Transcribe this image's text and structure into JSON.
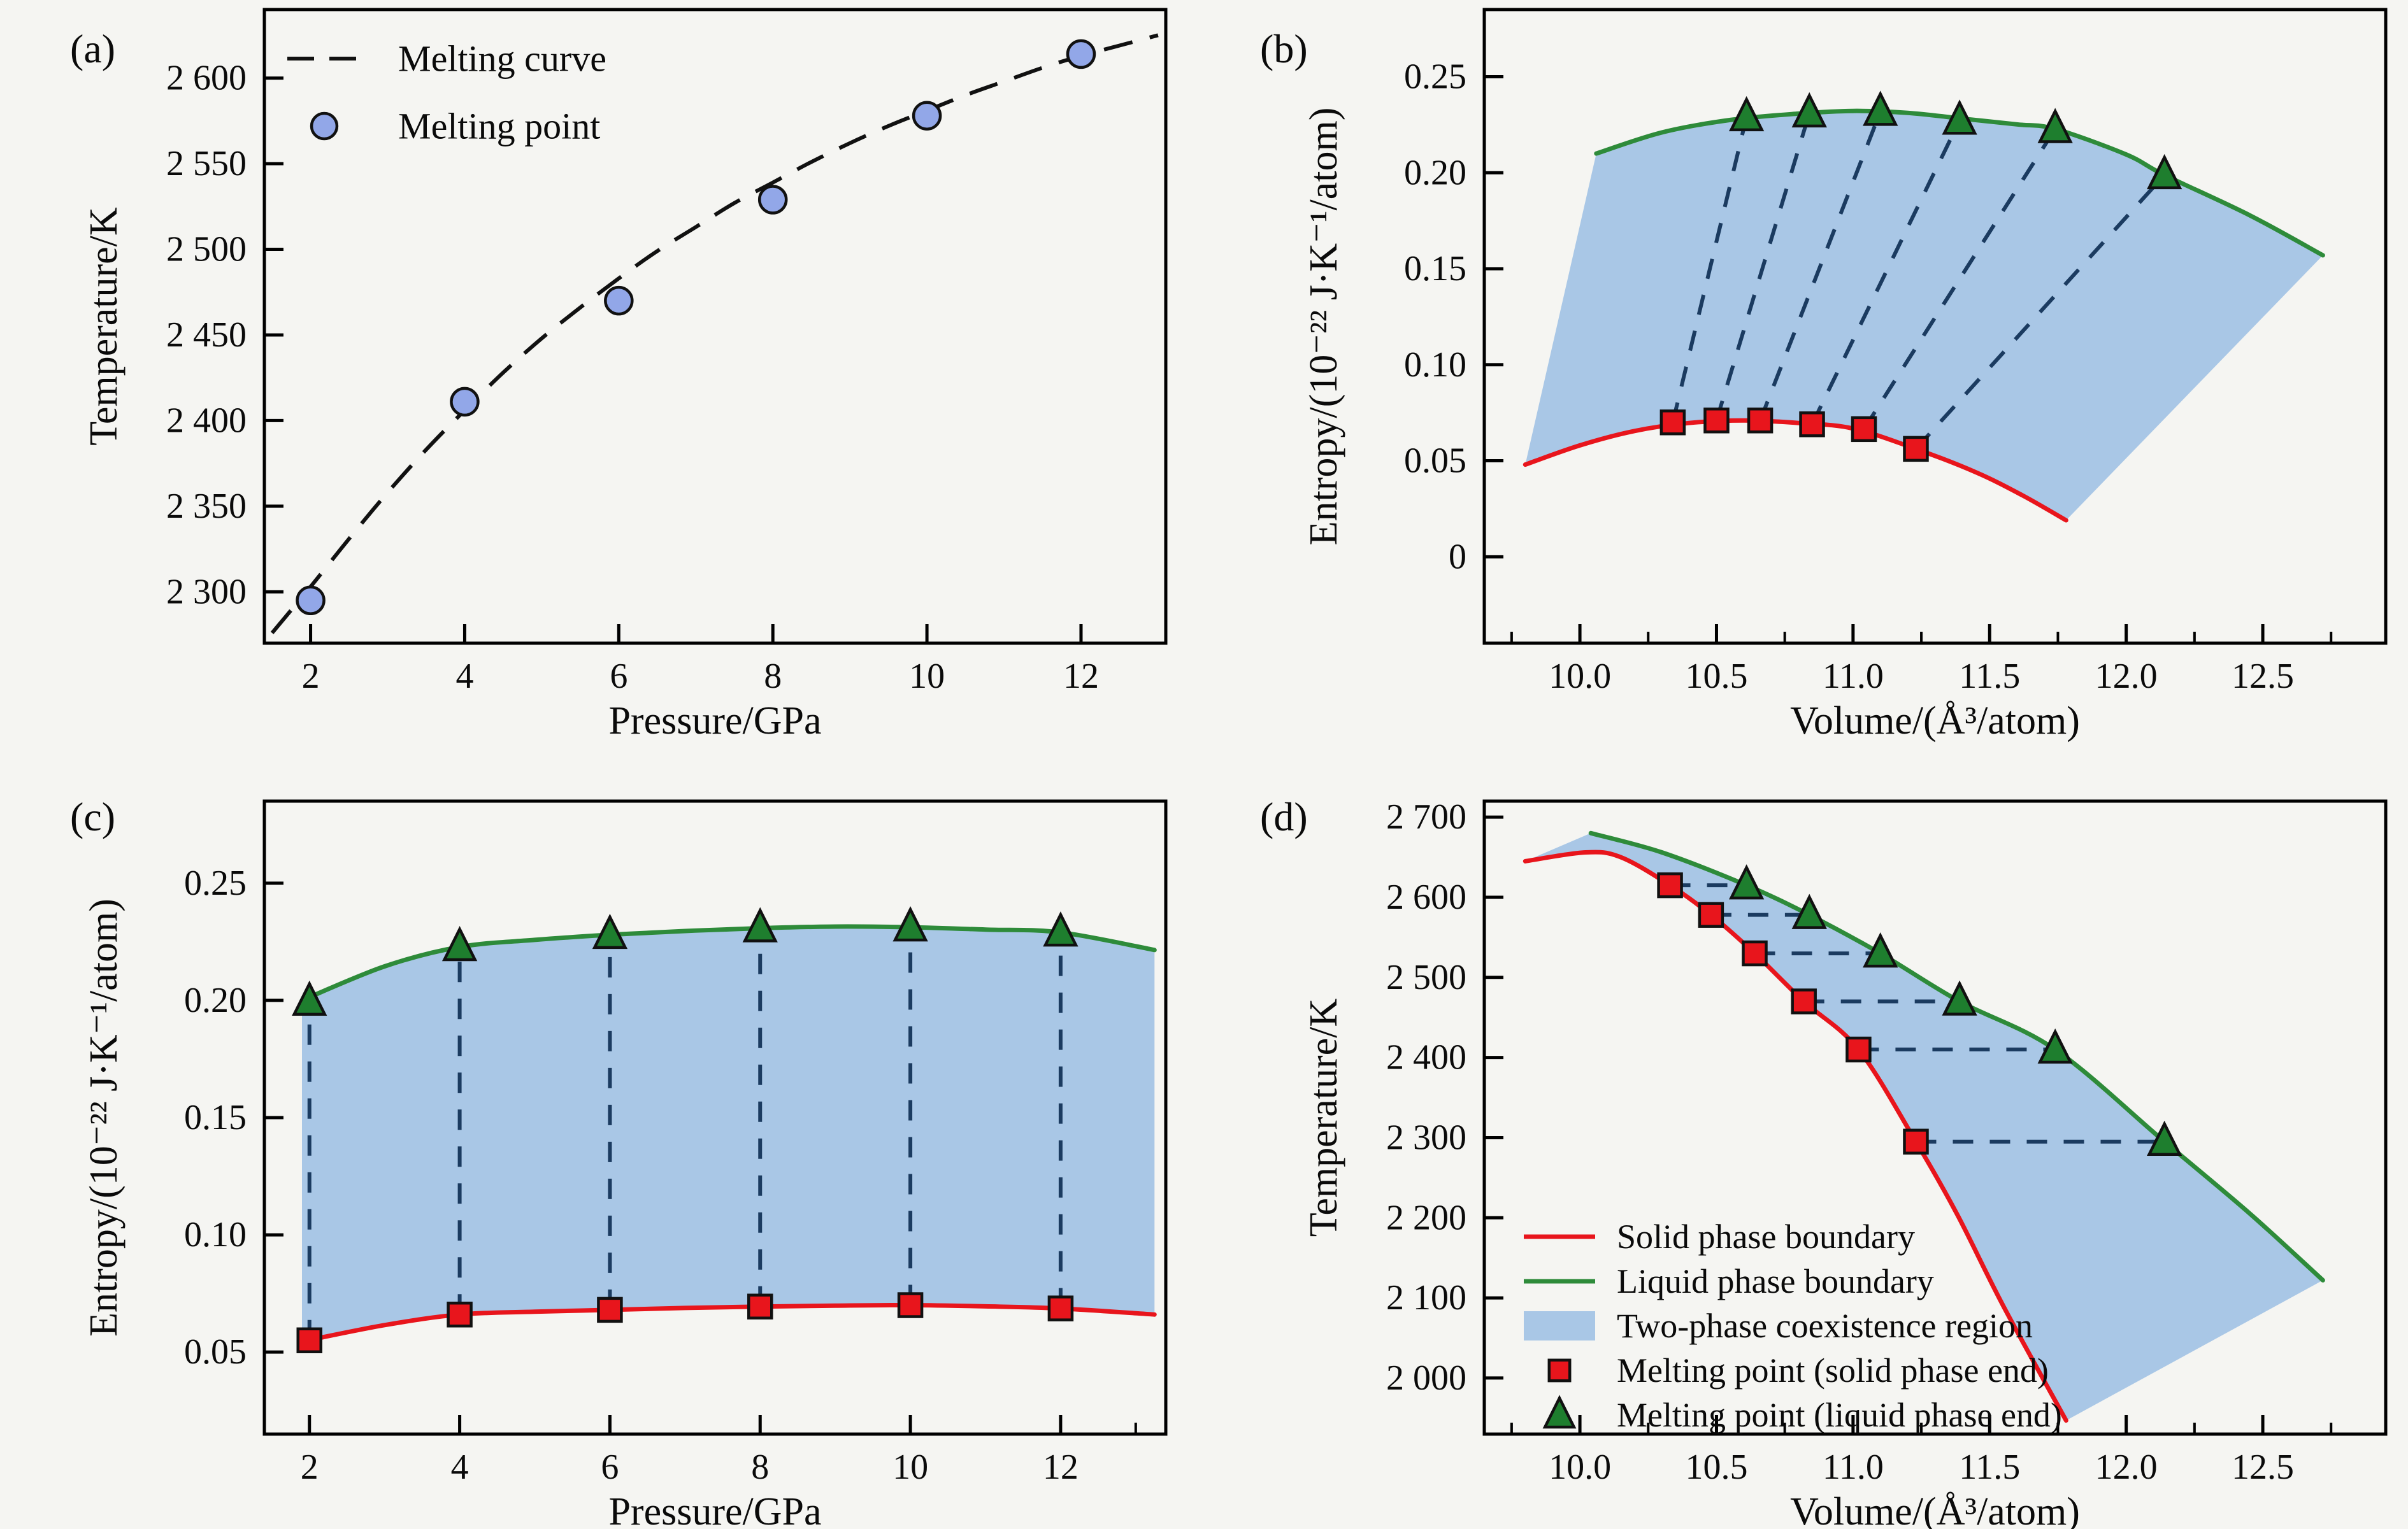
{
  "figure": {
    "background": "#f5f5f2",
    "text_color": "#0a0a0a",
    "axis_color": "#000000"
  },
  "chart_data": [
    {
      "panel": "(a)",
      "type": "line",
      "xlabel": "Pressure/GPa",
      "ylabel": "Temperature/K",
      "xlim": [
        1.4,
        13.1
      ],
      "ylim": [
        2270,
        2640
      ],
      "grid": false,
      "xticks": {
        "values": [
          2,
          4,
          6,
          8,
          10,
          12
        ],
        "labels": [
          "2",
          "4",
          "6",
          "8",
          "10",
          "12"
        ],
        "minor": []
      },
      "yticks": {
        "values": [
          2300,
          2350,
          2400,
          2450,
          2500,
          2550,
          2600
        ],
        "labels": [
          "2 300",
          "2 350",
          "2 400",
          "2 450",
          "2 500",
          "2 550",
          "2 600"
        ]
      },
      "melting_curve": {
        "label": "Melting curve",
        "color": "#111111",
        "dash": "46 28",
        "width": 6,
        "points": [
          [
            1.5,
            2276
          ],
          [
            2,
            2303
          ],
          [
            2.5,
            2331
          ],
          [
            3,
            2358
          ],
          [
            3.5,
            2383
          ],
          [
            4,
            2406
          ],
          [
            4.5,
            2428
          ],
          [
            5,
            2448
          ],
          [
            5.5,
            2466
          ],
          [
            6,
            2483
          ],
          [
            6.5,
            2499
          ],
          [
            7,
            2513
          ],
          [
            7.5,
            2527
          ],
          [
            8,
            2539
          ],
          [
            8.5,
            2551
          ],
          [
            9,
            2562
          ],
          [
            9.5,
            2572
          ],
          [
            10,
            2581
          ],
          [
            10.5,
            2590
          ],
          [
            11,
            2598
          ],
          [
            11.5,
            2606
          ],
          [
            12,
            2613
          ],
          [
            12.5,
            2619
          ],
          [
            13,
            2625
          ]
        ]
      },
      "melting_points": {
        "label": "Melting point",
        "marker": "circle",
        "fill": "#92a7e8",
        "edge": "#111111",
        "points": [
          [
            2,
            2295
          ],
          [
            4,
            2411
          ],
          [
            6,
            2470
          ],
          [
            8,
            2529
          ],
          [
            10,
            2578
          ],
          [
            12,
            2614
          ]
        ]
      },
      "legend": {
        "location": "upper-left",
        "entries": [
          {
            "swatch": "dashed-line",
            "color": "#111111",
            "label": "Melting curve"
          },
          {
            "swatch": "circle",
            "color": "#92a7e8",
            "label": "Melting point"
          }
        ]
      }
    },
    {
      "panel": "(b)",
      "type": "area",
      "xlabel": "Volume/(Å³/atom)",
      "ylabel": "Entropy/(10⁻²² J·K⁻¹/atom)",
      "xlim": [
        9.65,
        12.95
      ],
      "ylim": [
        -0.045,
        0.285
      ],
      "grid": false,
      "xticks": {
        "values": [
          10.0,
          10.5,
          11.0,
          11.5,
          12.0,
          12.5
        ],
        "labels": [
          "10.0",
          "10.5",
          "11.0",
          "11.5",
          "12.0",
          "12.5"
        ],
        "minor": [
          9.75,
          10.25,
          10.75,
          11.25,
          11.75,
          12.25,
          12.75
        ]
      },
      "yticks": {
        "values": [
          0,
          0.05,
          0.1,
          0.15,
          0.2,
          0.25
        ],
        "labels": [
          "0",
          "0.05",
          "0.10",
          "0.15",
          "0.20",
          "0.25"
        ]
      },
      "region": {
        "fill": "#a9c7e6",
        "label": "Two-phase coexistence region"
      },
      "solid_boundary": {
        "color": "#e8151c",
        "width": 7,
        "points": [
          [
            9.8,
            0.048
          ],
          [
            10.0,
            0.058
          ],
          [
            10.2,
            0.0655
          ],
          [
            10.4,
            0.0697
          ],
          [
            10.6,
            0.071
          ],
          [
            10.8,
            0.0697
          ],
          [
            11.0,
            0.0668
          ],
          [
            11.23,
            0.0562
          ],
          [
            11.45,
            0.044
          ],
          [
            11.62,
            0.032
          ],
          [
            11.78,
            0.019
          ]
        ]
      },
      "liquid_boundary": {
        "color": "#2e8b3a",
        "width": 7,
        "points": [
          [
            10.06,
            0.21
          ],
          [
            10.3,
            0.221
          ],
          [
            10.55,
            0.2275
          ],
          [
            10.8,
            0.2308
          ],
          [
            11.0,
            0.2322
          ],
          [
            11.2,
            0.2312
          ],
          [
            11.4,
            0.2282
          ],
          [
            11.6,
            0.2252
          ],
          [
            11.74,
            0.2228
          ],
          [
            12.0,
            0.2095
          ],
          [
            12.14,
            0.1988
          ],
          [
            12.45,
            0.178
          ],
          [
            12.72,
            0.157
          ]
        ]
      },
      "tie_lines": {
        "color": "#1b3b60",
        "dash": "32 26",
        "width": 6
      },
      "solid_end_points": {
        "marker": "square",
        "fill": "#e8151c",
        "edge": "#111111",
        "points": [
          [
            10.34,
            0.07
          ],
          [
            10.5,
            0.071
          ],
          [
            10.66,
            0.071
          ],
          [
            10.85,
            0.069
          ],
          [
            11.04,
            0.0665
          ],
          [
            11.23,
            0.0562
          ]
        ]
      },
      "liquid_end_points": {
        "marker": "triangle",
        "fill": "#1e7e2e",
        "edge": "#111111",
        "points": [
          [
            10.61,
            0.229
          ],
          [
            10.84,
            0.231
          ],
          [
            11.1,
            0.2318
          ],
          [
            11.39,
            0.2272
          ],
          [
            11.74,
            0.2228
          ],
          [
            12.14,
            0.1988
          ]
        ]
      }
    },
    {
      "panel": "(c)",
      "type": "area",
      "xlabel": "Pressure/GPa",
      "ylabel": "Entropy/(10⁻²² J·K⁻¹/atom)",
      "xlim": [
        1.4,
        13.4
      ],
      "ylim": [
        0.015,
        0.285
      ],
      "grid": false,
      "xticks": {
        "values": [
          2,
          4,
          6,
          8,
          10,
          12
        ],
        "labels": [
          "2",
          "4",
          "6",
          "8",
          "10",
          "12"
        ],
        "minor": [
          13
        ]
      },
      "yticks": {
        "values": [
          0.05,
          0.1,
          0.15,
          0.2,
          0.25
        ],
        "labels": [
          "0.05",
          "0.10",
          "0.15",
          "0.20",
          "0.25"
        ]
      },
      "region": {
        "fill": "#a9c7e6",
        "label": "Two-phase coexistence region"
      },
      "solid_boundary": {
        "color": "#e8151c",
        "width": 7,
        "points": [
          [
            1.9,
            0.0545
          ],
          [
            3,
            0.0615
          ],
          [
            4,
            0.066
          ],
          [
            5,
            0.0672
          ],
          [
            6,
            0.068
          ],
          [
            7,
            0.0688
          ],
          [
            8,
            0.0694
          ],
          [
            9,
            0.0698
          ],
          [
            10,
            0.07
          ],
          [
            11,
            0.0695
          ],
          [
            12,
            0.0686
          ],
          [
            13.25,
            0.066
          ]
        ]
      },
      "liquid_boundary": {
        "color": "#2e8b3a",
        "width": 7,
        "points": [
          [
            1.9,
            0.2
          ],
          [
            3,
            0.2145
          ],
          [
            4,
            0.2228
          ],
          [
            5,
            0.2258
          ],
          [
            6,
            0.228
          ],
          [
            7,
            0.2296
          ],
          [
            8,
            0.2308
          ],
          [
            9,
            0.2315
          ],
          [
            10,
            0.2312
          ],
          [
            11,
            0.2302
          ],
          [
            12,
            0.229
          ],
          [
            13.25,
            0.2215
          ]
        ]
      },
      "tie_lines": {
        "color": "#1b3b60",
        "dash": "32 26",
        "width": 6
      },
      "solid_end_points": {
        "marker": "square",
        "fill": "#e8151c",
        "edge": "#111111",
        "points": [
          [
            2,
            0.055
          ],
          [
            4,
            0.066
          ],
          [
            6,
            0.068
          ],
          [
            8,
            0.0694
          ],
          [
            10,
            0.07
          ],
          [
            12,
            0.0686
          ]
        ]
      },
      "liquid_end_points": {
        "marker": "triangle",
        "fill": "#1e7e2e",
        "edge": "#111111",
        "points": [
          [
            2,
            0.1995
          ],
          [
            4,
            0.2228
          ],
          [
            6,
            0.228
          ],
          [
            8,
            0.2308
          ],
          [
            10,
            0.2312
          ],
          [
            12,
            0.229
          ]
        ]
      }
    },
    {
      "panel": "(d)",
      "type": "area",
      "xlabel": "Volume/(Å³/atom)",
      "ylabel": "Temperature/K",
      "xlim": [
        9.65,
        12.95
      ],
      "ylim": [
        1930,
        2720
      ],
      "grid": false,
      "xticks": {
        "values": [
          10.0,
          10.5,
          11.0,
          11.5,
          12.0,
          12.5
        ],
        "labels": [
          "10.0",
          "10.5",
          "11.0",
          "11.5",
          "12.0",
          "12.5"
        ],
        "minor": [
          9.75,
          10.25,
          10.75,
          11.25,
          11.75,
          12.25,
          12.75
        ]
      },
      "yticks": {
        "values": [
          2000,
          2100,
          2200,
          2300,
          2400,
          2500,
          2600,
          2700
        ],
        "labels": [
          "2 000",
          "2 100",
          "2 200",
          "2 300",
          "2 400",
          "2 500",
          "2 600",
          "2 700"
        ]
      },
      "region": {
        "fill": "#a9c7e6",
        "label": "Two-phase coexistence region"
      },
      "solid_boundary": {
        "color": "#e8151c",
        "width": 7,
        "label": "Solid phase boundary",
        "points": [
          [
            9.8,
            2645
          ],
          [
            10.02,
            2656
          ],
          [
            10.15,
            2650
          ],
          [
            10.33,
            2615
          ],
          [
            10.48,
            2578
          ],
          [
            10.64,
            2530
          ],
          [
            10.82,
            2470
          ],
          [
            11.02,
            2410
          ],
          [
            11.23,
            2295
          ],
          [
            11.38,
            2205
          ],
          [
            11.55,
            2090
          ],
          [
            11.78,
            1947
          ]
        ]
      },
      "liquid_boundary": {
        "color": "#2e8b3a",
        "width": 7,
        "label": "Liquid phase boundary",
        "points": [
          [
            10.04,
            2680
          ],
          [
            10.3,
            2656
          ],
          [
            10.61,
            2615
          ],
          [
            10.84,
            2578
          ],
          [
            11.1,
            2530
          ],
          [
            11.39,
            2470
          ],
          [
            11.74,
            2410
          ],
          [
            12.14,
            2295
          ],
          [
            12.45,
            2206
          ],
          [
            12.72,
            2122
          ]
        ]
      },
      "tie_lines": {
        "color": "#1b3b60",
        "dash": "32 26",
        "width": 6
      },
      "solid_end_points": {
        "marker": "square",
        "fill": "#e8151c",
        "edge": "#111111",
        "label": "Melting point (solid phase end)",
        "points": [
          [
            10.33,
            2615
          ],
          [
            10.48,
            2578
          ],
          [
            10.64,
            2530
          ],
          [
            10.82,
            2470
          ],
          [
            11.02,
            2410
          ],
          [
            11.23,
            2295
          ]
        ]
      },
      "liquid_end_points": {
        "marker": "triangle",
        "fill": "#1e7e2e",
        "edge": "#111111",
        "label": "Melting point (liquid phase end)",
        "points": [
          [
            10.61,
            2615
          ],
          [
            10.84,
            2578
          ],
          [
            11.1,
            2530
          ],
          [
            11.39,
            2470
          ],
          [
            11.74,
            2410
          ],
          [
            12.14,
            2295
          ]
        ]
      },
      "legend": {
        "location": "lower-left",
        "entries": [
          {
            "swatch": "line",
            "color": "#e8151c",
            "label": "Solid phase boundary"
          },
          {
            "swatch": "line",
            "color": "#2e8b3a",
            "label": "Liquid phase boundary"
          },
          {
            "swatch": "patch",
            "color": "#a9c7e6",
            "label": "Two-phase coexistence region"
          },
          {
            "swatch": "square",
            "color": "#e8151c",
            "label": "Melting point (solid phase end)"
          },
          {
            "swatch": "triangle",
            "color": "#1e7e2e",
            "label": "Melting point (liquid phase end)"
          }
        ]
      }
    }
  ]
}
